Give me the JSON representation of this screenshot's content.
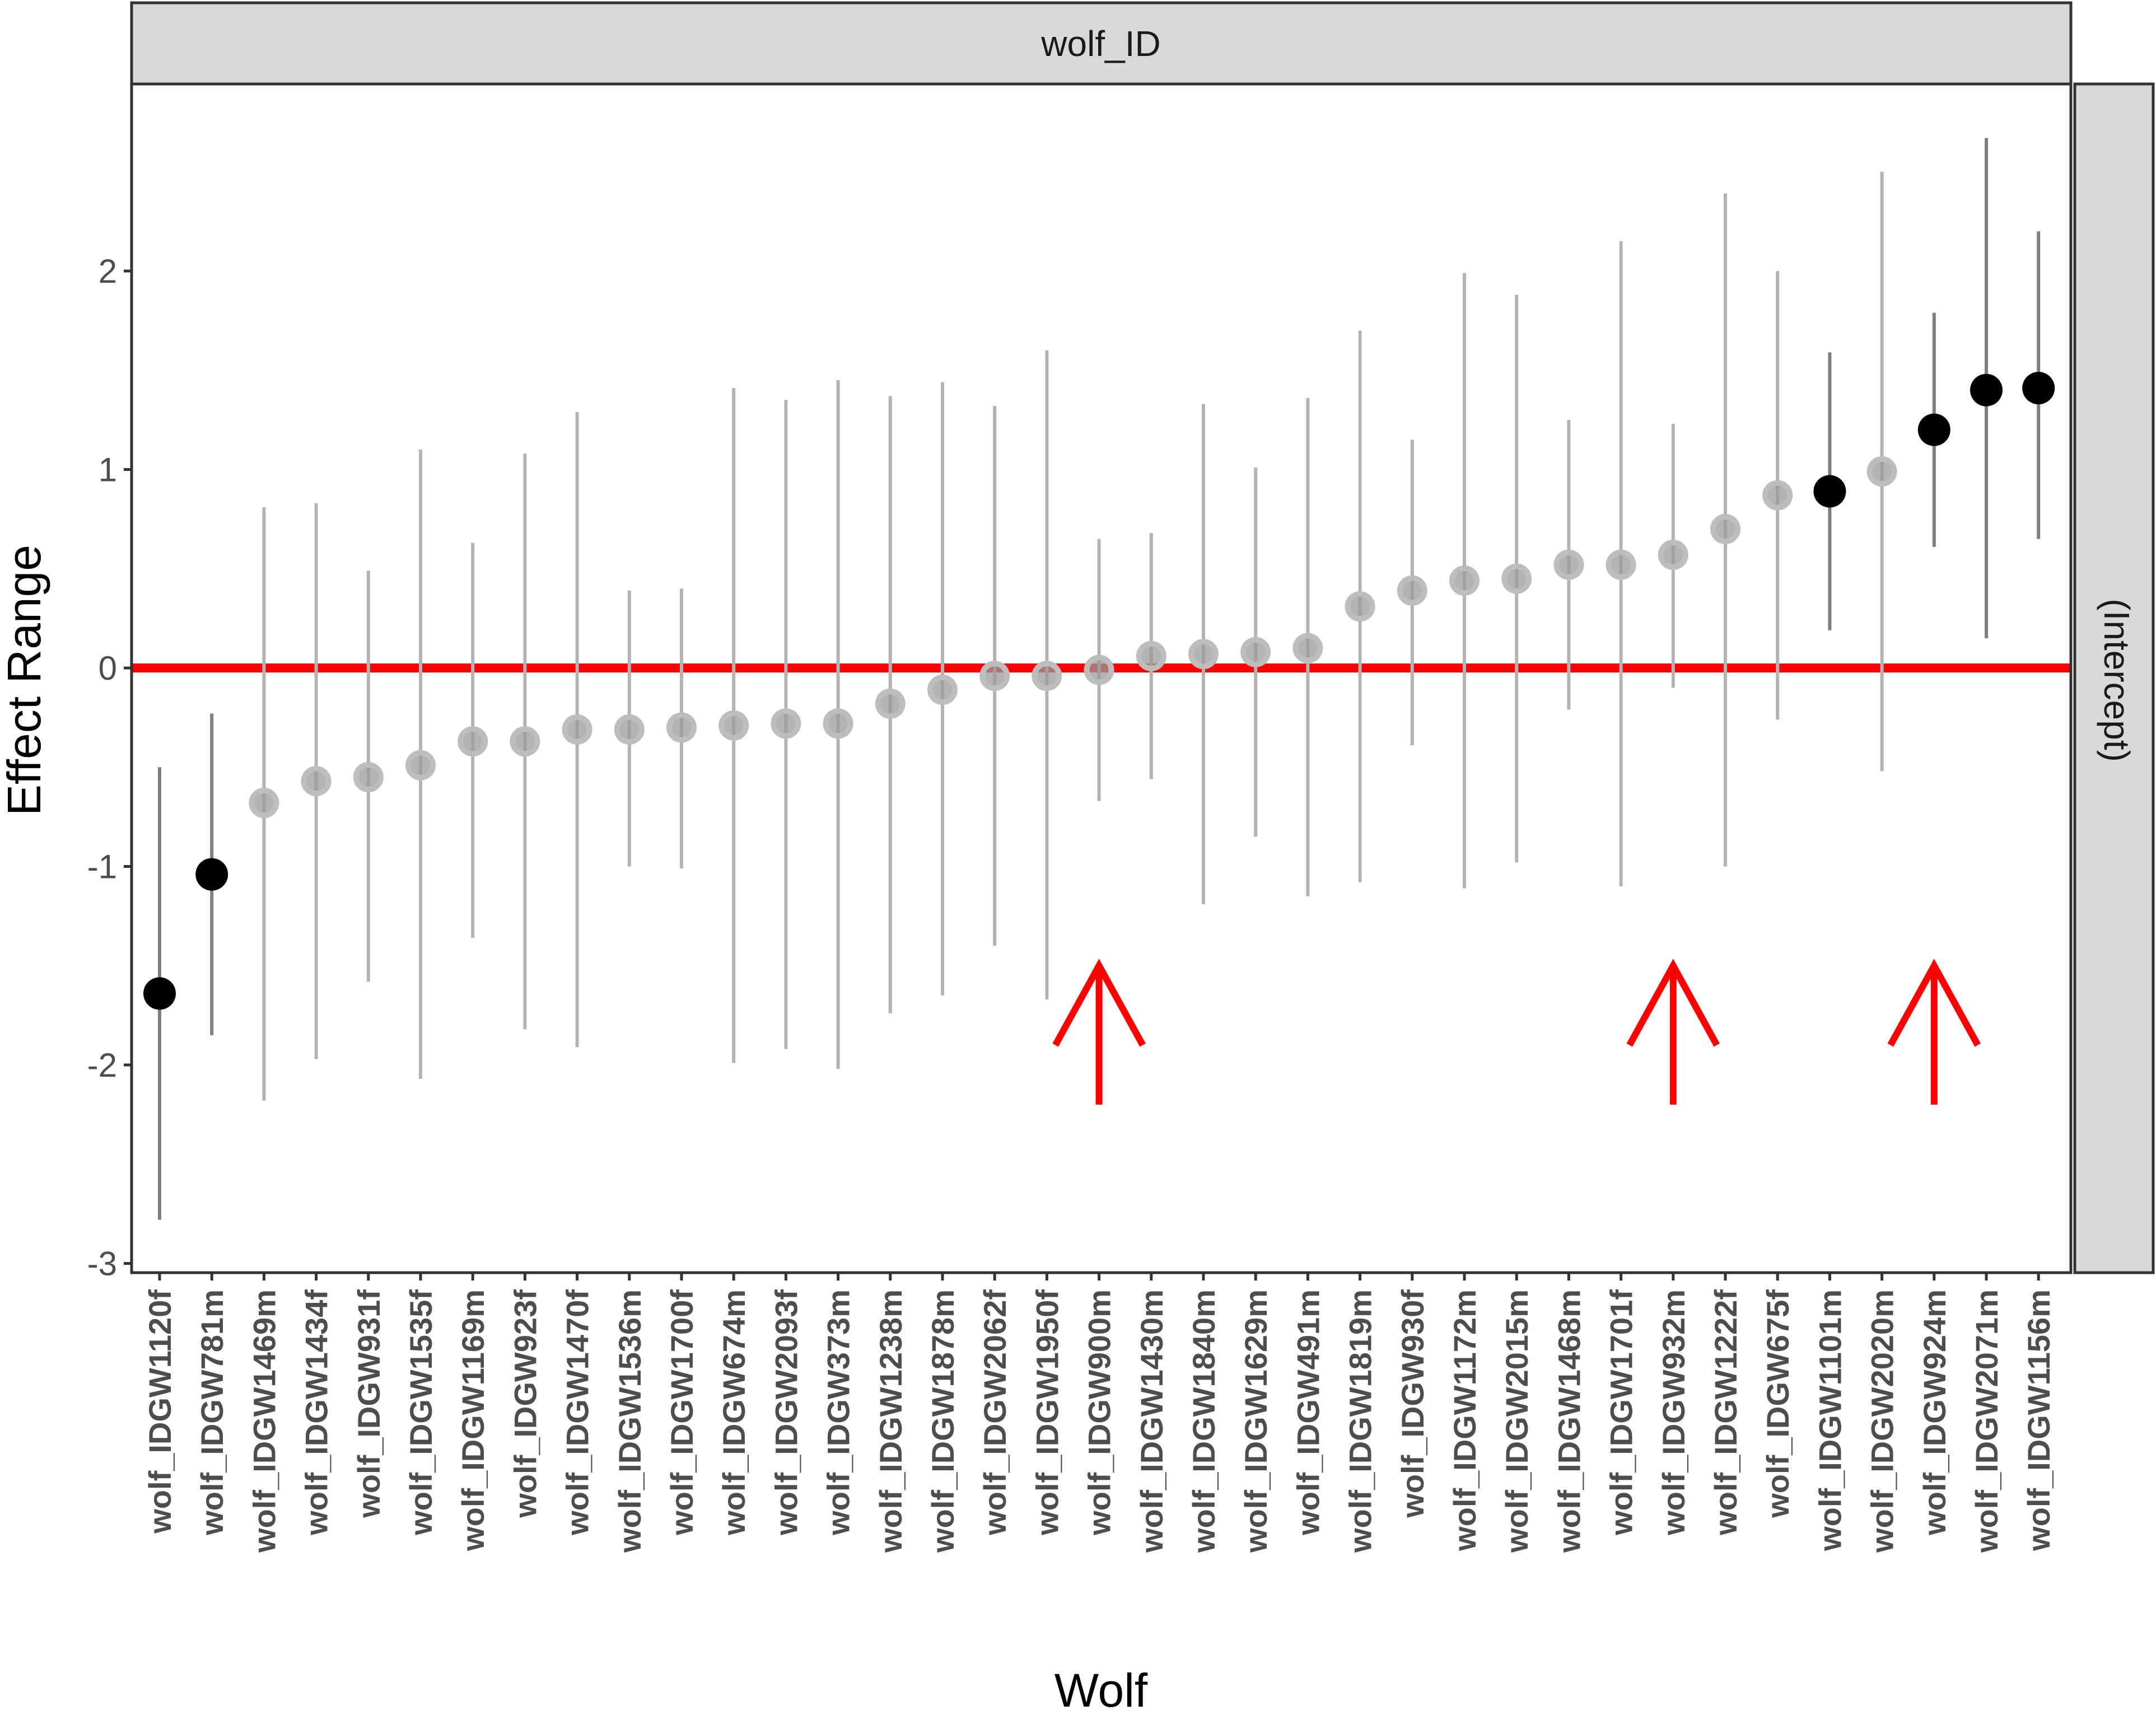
{
  "chart_data": {
    "type": "scatter",
    "facet_top": "wolf_ID",
    "facet_right": "(Intercept)",
    "xlabel": "Wolf",
    "ylabel": "Effect Range",
    "ylim": [
      -3,
      3
    ],
    "yticks": [
      2,
      1,
      0,
      -1,
      -2,
      -3
    ],
    "ytick_labels": [
      "2",
      "1",
      "0",
      "-1",
      "-2",
      "-3"
    ],
    "reference_line": {
      "y": 0,
      "color": "#ff0000"
    },
    "arrows_at": [
      "wolf_IDGW900m",
      "wolf_IDGW932m",
      "wolf_IDGW924m"
    ],
    "colors": {
      "significant": "#000000",
      "nonsignificant": "#999999",
      "reference": "#ff0000"
    },
    "categories": [
      "wolf_IDGW1120f",
      "wolf_IDGW781m",
      "wolf_IDGW1469m",
      "wolf_IDGW1434f",
      "wolf_IDGW931f",
      "wolf_IDGW1535f",
      "wolf_IDGW1169m",
      "wolf_IDGW923f",
      "wolf_IDGW1470f",
      "wolf_IDGW1536m",
      "wolf_IDGW1700f",
      "wolf_IDGW674m",
      "wolf_IDGW2093f",
      "wolf_IDGW373m",
      "wolf_IDGW1238m",
      "wolf_IDGW1878m",
      "wolf_IDGW2062f",
      "wolf_IDGW1950f",
      "wolf_IDGW900m",
      "wolf_IDGW1430m",
      "wolf_IDGW1840m",
      "wolf_IDGW1629m",
      "wolf_IDGW491m",
      "wolf_IDGW1819m",
      "wolf_IDGW930f",
      "wolf_IDGW1172m",
      "wolf_IDGW2015m",
      "wolf_IDGW1468m",
      "wolf_IDGW1701f",
      "wolf_IDGW932m",
      "wolf_IDGW1222f",
      "wolf_IDGW675f",
      "wolf_IDGW1101m",
      "wolf_IDGW2020m",
      "wolf_IDGW924m",
      "wolf_IDGW2071m",
      "wolf_IDGW1156m"
    ],
    "values": [
      -1.64,
      -1.04,
      -0.68,
      -0.57,
      -0.55,
      -0.49,
      -0.37,
      -0.37,
      -0.31,
      -0.31,
      -0.3,
      -0.29,
      -0.28,
      -0.28,
      -0.18,
      -0.11,
      -0.04,
      -0.04,
      -0.01,
      0.06,
      0.07,
      0.08,
      0.1,
      0.31,
      0.39,
      0.44,
      0.45,
      0.52,
      0.52,
      0.57,
      0.7,
      0.87,
      0.89,
      0.99,
      1.2,
      1.4,
      1.41
    ],
    "lower": [
      -2.78,
      -1.85,
      -2.18,
      -1.97,
      -1.58,
      -2.07,
      -1.36,
      -1.82,
      -1.91,
      -1.0,
      -1.01,
      -1.99,
      -1.92,
      -2.02,
      -1.74,
      -1.65,
      -1.4,
      -1.67,
      -0.67,
      -0.56,
      -1.19,
      -0.85,
      -1.15,
      -1.08,
      -0.39,
      -1.11,
      -0.98,
      -0.21,
      -1.1,
      -0.1,
      -1.0,
      -0.26,
      0.19,
      -0.52,
      0.61,
      0.15,
      0.65
    ],
    "upper": [
      -0.5,
      -0.23,
      0.81,
      0.83,
      0.49,
      1.1,
      0.63,
      1.08,
      1.29,
      0.39,
      0.4,
      1.41,
      1.35,
      1.45,
      1.37,
      1.44,
      1.32,
      1.6,
      0.65,
      0.68,
      1.33,
      1.01,
      1.36,
      1.7,
      1.15,
      1.99,
      1.88,
      1.25,
      2.15,
      1.23,
      2.39,
      2.0,
      1.59,
      2.5,
      1.79,
      2.67,
      2.2
    ],
    "significant": [
      true,
      true,
      false,
      false,
      false,
      false,
      false,
      false,
      false,
      false,
      false,
      false,
      false,
      false,
      false,
      false,
      false,
      false,
      false,
      false,
      false,
      false,
      false,
      false,
      false,
      false,
      false,
      false,
      false,
      false,
      false,
      false,
      true,
      false,
      true,
      true,
      true
    ]
  }
}
